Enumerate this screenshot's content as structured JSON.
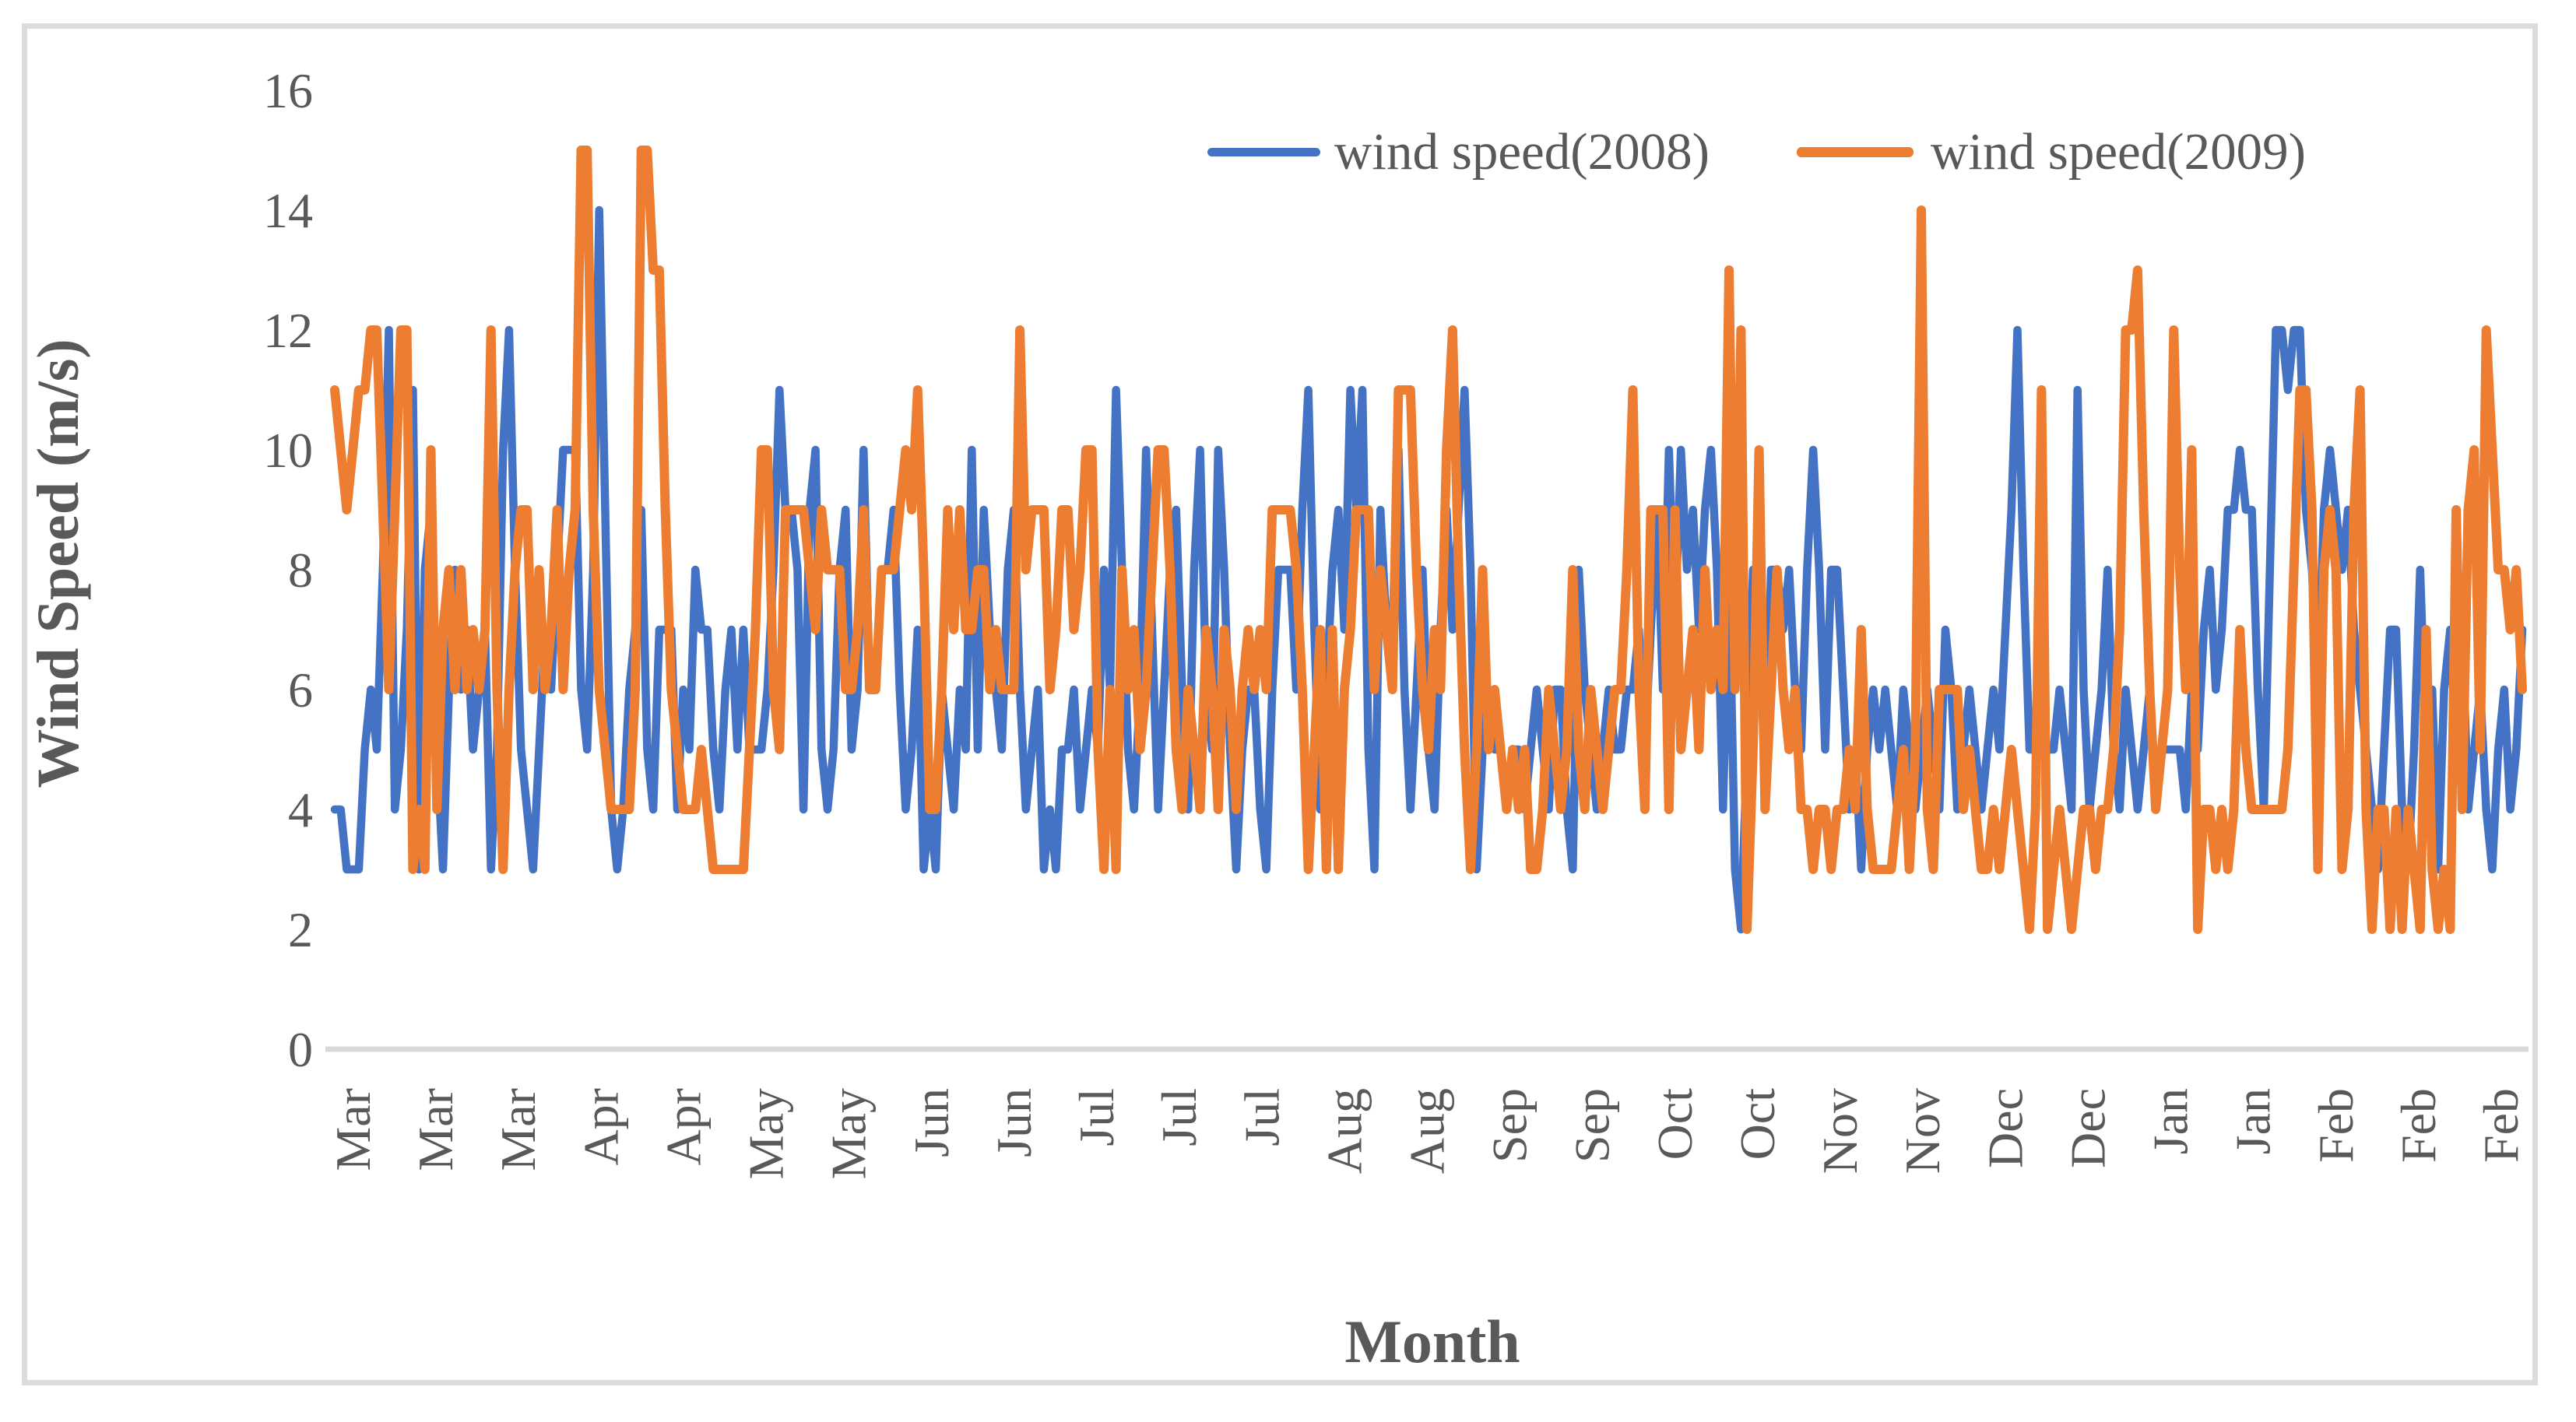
{
  "figure": {
    "background": "#ffffff",
    "border_color": "#dcdcdc"
  },
  "legend": {
    "items": [
      {
        "label": "wind speed(2008)",
        "color": "#4472C4"
      },
      {
        "label": "wind speed(2009)",
        "color": "#ED7D31"
      }
    ]
  },
  "axes": {
    "y_title": "Wind Speed (m/s)",
    "x_title": "Month",
    "text_color": "#595959",
    "axis_line_color": "#d9d9d9"
  },
  "chart_data": {
    "type": "line",
    "title": "",
    "xlabel": "Month",
    "ylabel": "Wind Speed (m/s)",
    "ylim": [
      0,
      16
    ],
    "y_ticks": [
      0,
      2,
      4,
      6,
      8,
      10,
      12,
      14,
      16
    ],
    "grid": false,
    "legend_position": "top-right-inside",
    "x_unit": "day (daily values, Mar through Feb)",
    "x_tick_labels": [
      "Mar",
      "Mar",
      "Mar",
      "Apr",
      "Apr",
      "May",
      "May",
      "Jun",
      "Jun",
      "Jul",
      "Jul",
      "Jul",
      "Aug",
      "Aug",
      "Sep",
      "Sep",
      "Oct",
      "Oct",
      "Nov",
      "Nov",
      "Dec",
      "Dec",
      "Jan",
      "Jan",
      "Feb",
      "Feb",
      "Feb"
    ],
    "series": [
      {
        "name": "wind speed(2008)",
        "color": "#4472C4",
        "values": [
          4,
          4,
          3,
          3,
          3,
          5,
          6,
          5,
          8,
          12,
          4,
          5,
          7,
          11,
          3,
          8,
          9,
          5,
          3,
          6,
          8,
          6,
          7,
          5,
          6,
          7,
          3,
          5,
          10,
          12,
          8,
          5,
          4,
          3,
          5,
          7,
          6,
          8,
          10,
          10,
          10,
          6,
          5,
          8,
          14,
          9,
          4,
          3,
          4,
          6,
          7,
          9,
          5,
          4,
          7,
          7,
          7,
          4,
          6,
          5,
          8,
          7,
          7,
          5,
          4,
          6,
          7,
          5,
          7,
          5,
          5,
          5,
          6,
          8,
          11,
          9,
          9,
          8,
          4,
          9,
          10,
          5,
          4,
          5,
          8,
          9,
          5,
          6,
          10,
          6,
          6,
          8,
          8,
          9,
          6,
          4,
          5,
          7,
          3,
          4,
          3,
          6,
          5,
          4,
          6,
          5,
          10,
          5,
          9,
          7,
          6,
          5,
          8,
          9,
          6,
          4,
          5,
          6,
          3,
          4,
          3,
          5,
          5,
          6,
          4,
          5,
          6,
          5,
          8,
          6,
          11,
          8,
          5,
          4,
          6,
          10,
          7,
          4,
          6,
          8,
          9,
          6,
          4,
          8,
          10,
          6,
          5,
          10,
          8,
          5,
          3,
          5,
          6,
          6,
          4,
          3,
          6,
          8,
          8,
          8,
          6,
          9,
          11,
          7,
          4,
          6,
          8,
          9,
          7,
          11,
          9,
          11,
          5,
          3,
          9,
          7,
          7,
          10,
          6,
          4,
          6,
          8,
          5,
          4,
          7,
          9,
          7,
          9,
          11,
          8,
          3,
          5,
          6,
          5,
          5,
          4,
          5,
          5,
          4,
          5,
          6,
          5,
          4,
          6,
          6,
          4,
          3,
          8,
          6,
          5,
          4,
          5,
          6,
          5,
          5,
          6,
          6,
          7,
          5,
          7,
          9,
          6,
          10,
          7,
          10,
          8,
          9,
          7,
          9,
          10,
          8,
          4,
          8,
          3,
          2,
          5,
          8,
          8,
          4,
          8,
          8,
          7,
          8,
          6,
          5,
          8,
          10,
          8,
          5,
          8,
          8,
          6,
          4,
          5,
          3,
          5,
          6,
          5,
          6,
          5,
          4,
          6,
          5,
          4,
          5,
          6,
          5,
          4,
          7,
          6,
          4,
          5,
          6,
          5,
          4,
          5,
          6,
          5,
          7,
          9,
          12,
          8,
          5,
          5,
          5,
          5,
          5,
          6,
          5,
          4,
          11,
          6,
          4,
          5,
          6,
          8,
          5,
          4,
          6,
          5,
          4,
          5,
          6,
          4,
          5,
          5,
          5,
          5,
          4,
          6,
          5,
          7,
          8,
          6,
          7,
          9,
          9,
          10,
          9,
          9,
          6,
          4,
          8,
          12,
          12,
          11,
          12,
          12,
          9,
          8,
          6,
          9,
          10,
          9,
          8,
          9,
          7,
          6,
          5,
          4,
          3,
          5,
          7,
          7,
          4,
          3,
          5,
          8,
          5,
          6,
          3,
          6,
          7,
          5,
          7,
          4,
          5,
          6,
          4,
          3,
          5,
          6,
          4,
          5,
          7
        ]
      },
      {
        "name": "wind speed(2009)",
        "color": "#ED7D31",
        "values": [
          11,
          10,
          9,
          10,
          11,
          11,
          12,
          12,
          9,
          6,
          9,
          12,
          12,
          3,
          4,
          3,
          10,
          4,
          7,
          8,
          6,
          8,
          6,
          7,
          6,
          7,
          12,
          6,
          3,
          6,
          8,
          9,
          9,
          6,
          8,
          6,
          7,
          9,
          6,
          8,
          9,
          15,
          15,
          9,
          6,
          5,
          4,
          4,
          4,
          4,
          6,
          15,
          15,
          13,
          13,
          9,
          6,
          5,
          4,
          4,
          4,
          5,
          4,
          3,
          3,
          3,
          3,
          3,
          3,
          5,
          7,
          10,
          10,
          6,
          5,
          9,
          9,
          9,
          9,
          8,
          7,
          9,
          8,
          8,
          8,
          6,
          6,
          7,
          9,
          6,
          6,
          8,
          8,
          8,
          9,
          10,
          9,
          11,
          8,
          4,
          4,
          6,
          9,
          7,
          9,
          7,
          7,
          8,
          8,
          6,
          7,
          6,
          6,
          6,
          12,
          8,
          9,
          9,
          9,
          6,
          7,
          9,
          9,
          7,
          8,
          10,
          10,
          5,
          3,
          6,
          3,
          8,
          6,
          7,
          5,
          6,
          8,
          10,
          10,
          8,
          5,
          4,
          6,
          5,
          4,
          7,
          6,
          4,
          7,
          6,
          4,
          6,
          7,
          6,
          7,
          6,
          9,
          9,
          9,
          9,
          8,
          6,
          3,
          5,
          7,
          3,
          7,
          3,
          6,
          7,
          9,
          9,
          9,
          6,
          8,
          7,
          6,
          11,
          11,
          11,
          8,
          6,
          5,
          7,
          6,
          10,
          12,
          8,
          5,
          3,
          5,
          8,
          5,
          6,
          5,
          4,
          5,
          4,
          5,
          3,
          3,
          4,
          6,
          5,
          4,
          5,
          8,
          5,
          4,
          6,
          5,
          4,
          5,
          6,
          6,
          8,
          11,
          6,
          4,
          9,
          9,
          9,
          4,
          9,
          5,
          6,
          7,
          5,
          8,
          6,
          7,
          6,
          13,
          6,
          12,
          2,
          5,
          10,
          4,
          6,
          8,
          6,
          5,
          6,
          4,
          4,
          3,
          4,
          4,
          3,
          4,
          4,
          5,
          4,
          7,
          4,
          3,
          3,
          3,
          3,
          4,
          5,
          3,
          5,
          14,
          4,
          3,
          6,
          6,
          6,
          6,
          4,
          5,
          4,
          3,
          3,
          4,
          3,
          4,
          5,
          4,
          3,
          2,
          4,
          11,
          2,
          3,
          4,
          3,
          2,
          3,
          4,
          4,
          3,
          4,
          4,
          5,
          7,
          12,
          12,
          13,
          9,
          6,
          4,
          5,
          6,
          12,
          8,
          6,
          10,
          2,
          4,
          4,
          3,
          4,
          3,
          4,
          7,
          5,
          4,
          4,
          4,
          4,
          4,
          4,
          5,
          8,
          11,
          11,
          9,
          3,
          8,
          9,
          8,
          3,
          4,
          9,
          11,
          4,
          2,
          4,
          4,
          2,
          4,
          2,
          4,
          3,
          2,
          7,
          3,
          2,
          3,
          2,
          9,
          4,
          9,
          10,
          5,
          12,
          10,
          8,
          8,
          7,
          8,
          6
        ]
      }
    ]
  }
}
